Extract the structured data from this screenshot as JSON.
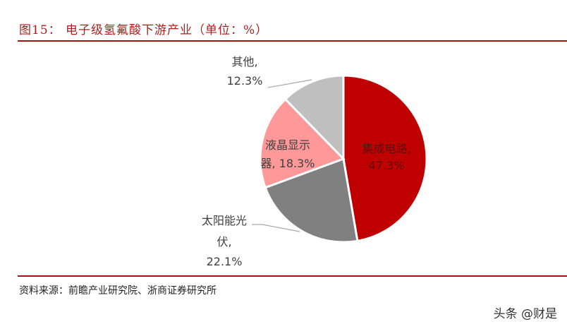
{
  "header": {
    "title": "图15：  电子级氢氟酸下游产业（单位：%）"
  },
  "footer": {
    "source": "资料来源：前瞻产业研究院、浙商证券研究所",
    "watermark": "头条 @财是"
  },
  "colors": {
    "accent": "#a81010",
    "slice_ic": "#c00000",
    "slice_solar": "#808080",
    "slice_lcd": "#ff9999",
    "slice_other": "#bfbfbf"
  },
  "chart_data": {
    "type": "pie",
    "title": "电子级氢氟酸下游产业（单位：%）",
    "categories": [
      "集成电路",
      "太阳能光伏",
      "液晶显示器",
      "其他"
    ],
    "values": [
      47.3,
      22.1,
      18.3,
      12.3
    ],
    "unit": "%",
    "start_angle": "12 o'clock, clockwise",
    "labels": [
      {
        "line1": "集成电路,",
        "line2": "47.3%"
      },
      {
        "line1": "太阳能光",
        "line2": "伏,",
        "line3": "22.1%"
      },
      {
        "line1": "液晶显示",
        "line2": "器, 18.3%"
      },
      {
        "line1": "其他,",
        "line2": "12.3%"
      }
    ],
    "legend": "none (data labels on slices)"
  }
}
